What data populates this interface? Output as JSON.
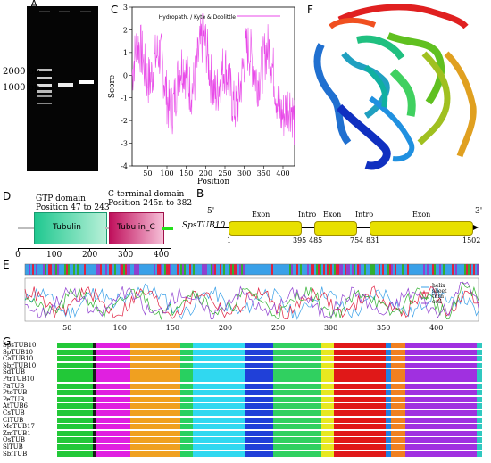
{
  "panels": {
    "A": "A",
    "B": "B",
    "C": "C",
    "D": "D",
    "E": "E",
    "F": "F",
    "G": "G"
  },
  "panel_a": {
    "markers": [
      "2000 bp",
      "1000 bp"
    ]
  },
  "panel_c": {
    "legend": "Hydropath. / Kyte & Doolittle",
    "ylabel": "Score",
    "xlabel": "Position",
    "y_ticks": [
      "3",
      "2",
      "1",
      "0",
      "-1",
      "-2",
      "-3",
      "-4"
    ],
    "x_ticks": [
      "50",
      "100",
      "150",
      "200",
      "250",
      "300",
      "350",
      "400"
    ],
    "series_color": "#e84ae8"
  },
  "panel_d": {
    "gtp_title": "GTP domain",
    "gtp_pos": "Position 47 to 243",
    "cterm_title": "C-terminal domain",
    "cterm_pos": "Position 245n to 382",
    "tubulin": "Tubulin",
    "tubulin_c": "Tubulin_C",
    "x_ticks": [
      "0",
      "100",
      "200",
      "300",
      "400"
    ],
    "colors": {
      "gtp": "#2fd39a",
      "cterm": "#c8156a",
      "linker": "#bdbdbd",
      "tail": "#22e01a"
    }
  },
  "panel_b": {
    "gene": "SpsTUB10",
    "five": "5'",
    "three": "3'",
    "segments": [
      "Exon",
      "Intro",
      "Exon",
      "Intro",
      "Exon"
    ],
    "positions": [
      "1",
      "395",
      "485",
      "754",
      "831",
      "1502"
    ],
    "exon_color": "#e8e000"
  },
  "panel_e": {
    "x_ticks": [
      "50",
      "100",
      "150",
      "200",
      "250",
      "300",
      "350",
      "400"
    ],
    "legend": [
      "helix",
      "sheet",
      "turn",
      "coil"
    ],
    "colors": {
      "helix": "#3aa0e8",
      "sheet": "#e02040",
      "turn": "#30b030",
      "coil": "#9040d0"
    }
  },
  "panel_g": {
    "species": [
      "SpsTUB10",
      "SpTUB10",
      "CaTUB10",
      "SbrTUB10",
      "SdTUB",
      "PtrTUB10",
      "PaTUB",
      "PtoTUB",
      "PeTUB",
      "AtTUB6",
      "CsTUB",
      "ClTUB",
      "MeTUB17",
      "ZmTUB1",
      "OsTUB",
      "SlTUB",
      "SbiTUB"
    ],
    "motif_colors": [
      "#22c838",
      "#1a1a1a",
      "#e020e0",
      "#f0a020",
      "#28d060",
      "#30d8f0",
      "#2040d8",
      "#30d060",
      "#e8e820",
      "#e01818",
      "#2080e0",
      "#f08020",
      "#a030e0",
      "#30c8c0"
    ]
  }
}
